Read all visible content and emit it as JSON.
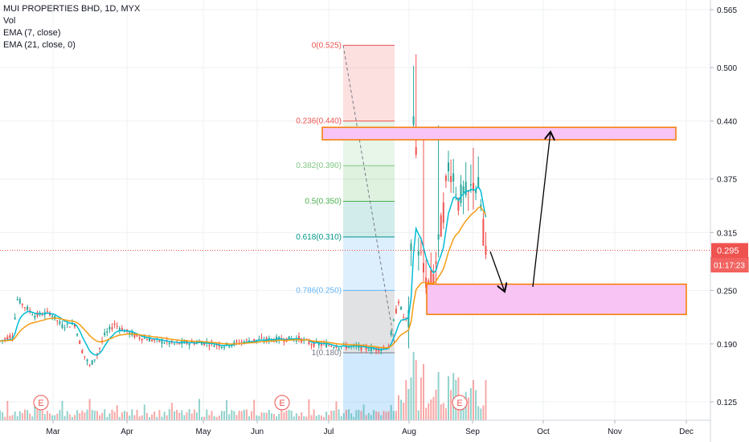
{
  "legend": {
    "title": "MUI PROPERTIES BHD, 1D, MYX",
    "vol": "Vol",
    "ema7": "EMA (7, close)",
    "ema21": "EMA (21, close, 0)"
  },
  "price_badge": {
    "price": "0.295",
    "countdown": "01:17:23"
  },
  "colors": {
    "up": "#26a69a",
    "down": "#ef5350",
    "ema7": "#00bcd4",
    "ema21": "#f39c12",
    "zone_fill": "#f8c4f4",
    "zone_border": "#f57c00",
    "price_line": "#ef5350"
  },
  "chart_data": {
    "type": "candlestick",
    "symbol": "MUI PROPERTIES BHD",
    "interval": "1D",
    "exchange": "MYX",
    "y_ticks": [
      "0.565",
      "0.500",
      "0.440",
      "0.375",
      "0.315",
      "0.250",
      "0.190",
      "0.125"
    ],
    "ylim": [
      0.105,
      0.58
    ],
    "x_ticks": [
      "Mar",
      "Apr",
      "May",
      "Jun",
      "Jul",
      "Aug",
      "Sep",
      "Oct",
      "Nov",
      "Dec"
    ],
    "last_price": 0.295,
    "fibonacci": [
      {
        "label": "0(0.525)",
        "value": 0.525
      },
      {
        "label": "0.236(0.440)",
        "value": 0.44
      },
      {
        "label": "0.382(0.390)",
        "value": 0.39
      },
      {
        "label": "0.5(0.350)",
        "value": 0.35
      },
      {
        "label": "0.618(0.310)",
        "value": 0.31
      },
      {
        "label": "0.786(0.250)",
        "value": 0.25
      },
      {
        "label": "1(0.180)",
        "value": 0.18
      }
    ],
    "zones": [
      {
        "name": "resistance",
        "top": 0.433,
        "bottom": 0.419,
        "from_day": 126,
        "to_day": 210
      },
      {
        "name": "support",
        "top": 0.257,
        "bottom": 0.223,
        "from_day": 177,
        "to_day": 213
      }
    ],
    "event_markers": [
      {
        "label": "E",
        "day": 10
      },
      {
        "label": "E",
        "day": 100
      },
      {
        "label": "E",
        "day": 187
      }
    ],
    "arrows": [
      {
        "from": [
          193,
          0.29
        ],
        "to": [
          197,
          0.247
        ]
      },
      {
        "from": [
          211,
          0.257
        ],
        "to": [
          216,
          0.424
        ]
      }
    ]
  }
}
